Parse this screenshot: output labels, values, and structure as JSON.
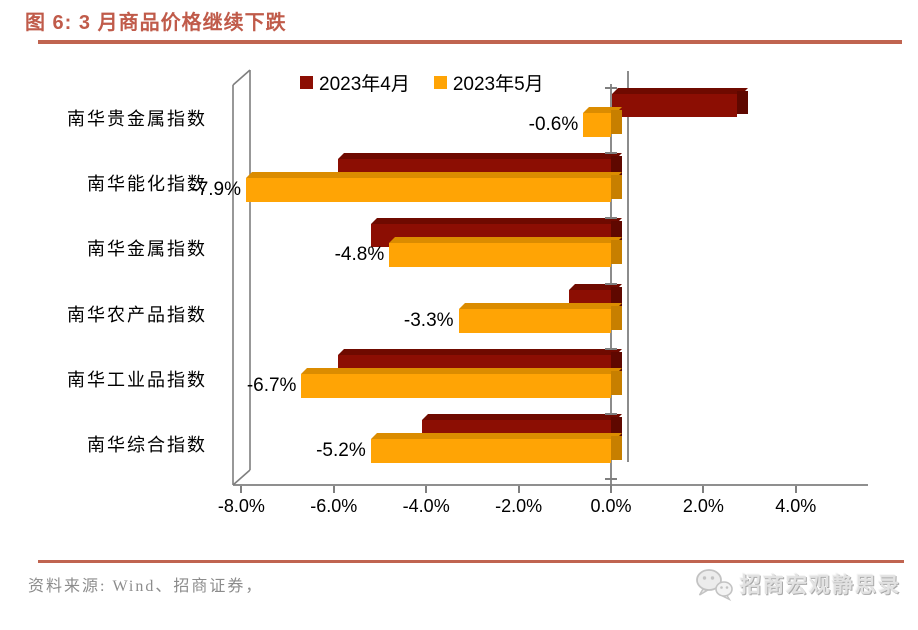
{
  "header": {
    "title": "图 6: 3 月商品价格继续下跌"
  },
  "footer": {
    "source": "资料来源: Wind、招商证券，",
    "brand": "招商宏观静思录"
  },
  "colors": {
    "title_accent": "#C05B4A",
    "rule": "#C06450",
    "axis": "#7f7f7f",
    "april_red": "#8C0E03",
    "may_orange": "#FFA405"
  },
  "icons": {
    "brand_icon": "wechat-icon"
  },
  "chart_data": {
    "type": "bar",
    "orientation": "horizontal",
    "style": "3d",
    "title": "3 月商品价格继续下跌",
    "categories": [
      "南华贵金属指数",
      "南华能化指数",
      "南华金属指数",
      "南华农产品指数",
      "南华工业品指数",
      "南华综合指数"
    ],
    "series": [
      {
        "name": "2023年4月",
        "color": "#8C0E03",
        "color_dark": "#6F0A00",
        "color_cap": "#5F0800",
        "values": [
          2.7,
          -5.9,
          -5.2,
          -0.9,
          -5.9,
          -4.1
        ],
        "labels": null
      },
      {
        "name": "2023年5月",
        "color": "#FFA405",
        "color_dark": "#DB8C00",
        "color_cap": "#C77F00",
        "values": [
          -0.6,
          -7.9,
          -4.8,
          -3.3,
          -6.7,
          -5.2
        ],
        "labels": [
          "-0.6%",
          "-7.9%",
          "-4.8%",
          "-3.3%",
          "-6.7%",
          "-5.2%"
        ]
      }
    ],
    "x_ticks": [
      "-8.0%",
      "-6.0%",
      "-4.0%",
      "-2.0%",
      "0.0%",
      "2.0%",
      "4.0%"
    ],
    "x_tick_values": [
      -8,
      -6,
      -4,
      -2,
      0,
      2,
      4
    ],
    "xlim": [
      -8,
      4
    ],
    "unit": "%",
    "legend_position": "top",
    "grid": false,
    "zero_axis_line": true
  }
}
